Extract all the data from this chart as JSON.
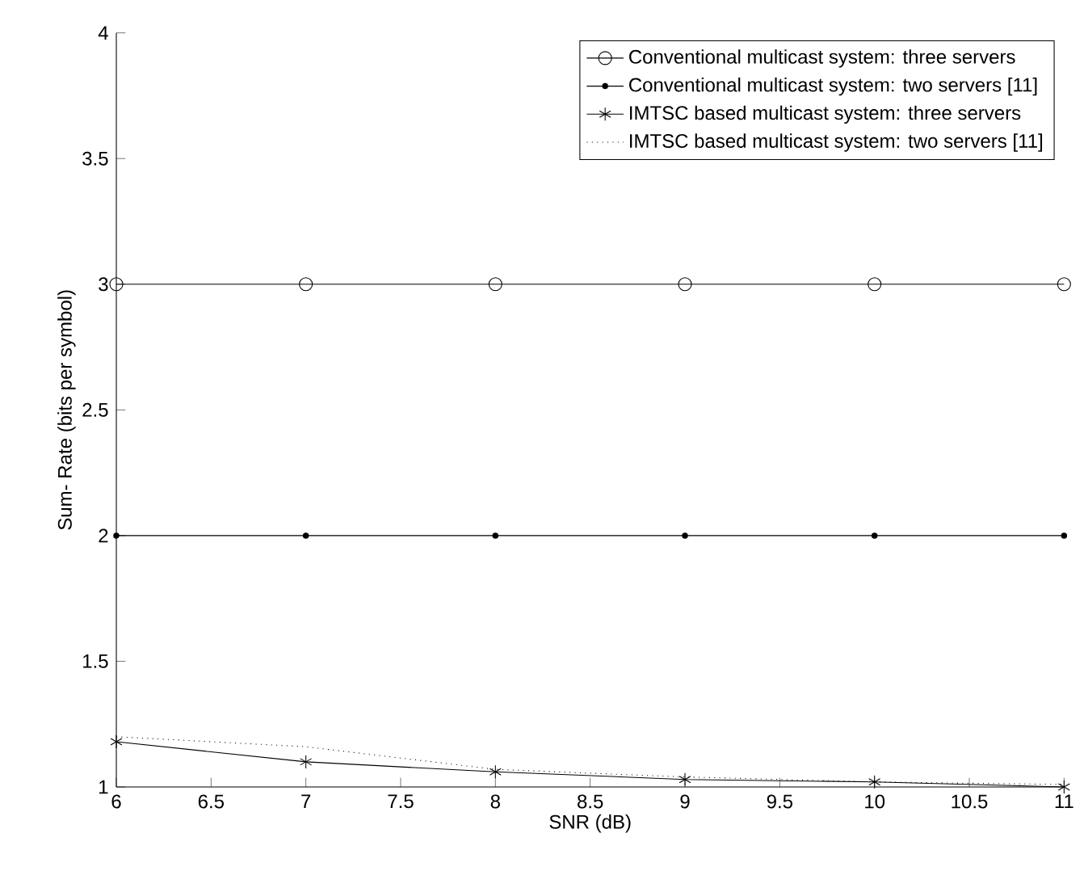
{
  "chart_data": {
    "type": "line",
    "xlabel": "SNR (dB)",
    "ylabel": "Sum- Rate (bits per symbol)",
    "x": [
      6,
      7,
      8,
      9,
      10,
      11
    ],
    "series": [
      {
        "name": "Conventional multicast system: three servers",
        "color": "#000000",
        "marker": "circle",
        "line_style": "solid",
        "values": [
          3,
          3,
          3,
          3,
          3,
          3
        ]
      },
      {
        "name": "Conventional multicast system: two servers [11]",
        "color": "#000000",
        "marker": "dot",
        "line_style": "solid",
        "values": [
          2,
          2,
          2,
          2,
          2,
          2
        ]
      },
      {
        "name": "IMTSC based multicast system: three servers",
        "color": "#000000",
        "marker": "cross",
        "line_style": "solid",
        "values": [
          1.18,
          1.1,
          1.06,
          1.03,
          1.02,
          1.0
        ]
      },
      {
        "name": "IMTSC based multicast system: two servers [11]",
        "color": "#000000",
        "marker": "none",
        "line_style": "dotted",
        "values": [
          1.2,
          1.16,
          1.07,
          1.04,
          1.02,
          1.01
        ]
      }
    ],
    "xlim": [
      6,
      11
    ],
    "ylim": [
      1,
      4
    ],
    "xticks": [
      6,
      6.5,
      7,
      7.5,
      8,
      8.5,
      9,
      9.5,
      10,
      10.5,
      11
    ],
    "yticks": [
      1,
      1.5,
      2,
      2.5,
      3,
      3.5,
      4
    ],
    "grid": false,
    "legend": "top right"
  }
}
